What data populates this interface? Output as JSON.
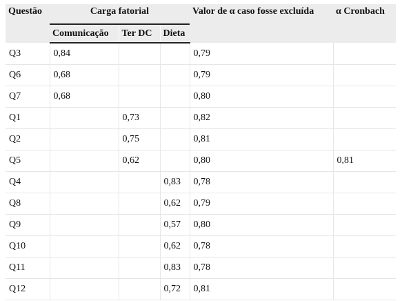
{
  "headers": {
    "questao": "Questão",
    "carga_fatorial": "Carga fatorial",
    "comunicacao": "Comunicação",
    "ter_dc": "Ter DC",
    "dieta": "Dieta",
    "valor_alpha": "Valor de α caso fosse excluída",
    "alpha_cronbach": "α Cronbach"
  },
  "rows": [
    {
      "q": "Q3",
      "com": "0,84",
      "terdc": "",
      "dieta": "",
      "alpha": "0,79",
      "cronbach": ""
    },
    {
      "q": "Q6",
      "com": "0,68",
      "terdc": "",
      "dieta": "",
      "alpha": "0,79",
      "cronbach": ""
    },
    {
      "q": "Q7",
      "com": "0,68",
      "terdc": "",
      "dieta": "",
      "alpha": "0,80",
      "cronbach": ""
    },
    {
      "q": "Q1",
      "com": "",
      "terdc": "0,73",
      "dieta": "",
      "alpha": "0,82",
      "cronbach": ""
    },
    {
      "q": "Q2",
      "com": "",
      "terdc": "0,75",
      "dieta": "",
      "alpha": "0,81",
      "cronbach": ""
    },
    {
      "q": "Q5",
      "com": "",
      "terdc": "0,62",
      "dieta": "",
      "alpha": "0,80",
      "cronbach": "0,81"
    },
    {
      "q": "Q4",
      "com": "",
      "terdc": "",
      "dieta": "0,83",
      "alpha": "0,78",
      "cronbach": ""
    },
    {
      "q": "Q8",
      "com": "",
      "terdc": "",
      "dieta": "0,62",
      "alpha": "0,79",
      "cronbach": ""
    },
    {
      "q": "Q9",
      "com": "",
      "terdc": "",
      "dieta": "0,57",
      "alpha": "0,80",
      "cronbach": ""
    },
    {
      "q": "Q10",
      "com": "",
      "terdc": "",
      "dieta": "0,62",
      "alpha": "0,78",
      "cronbach": ""
    },
    {
      "q": "Q11",
      "com": "",
      "terdc": "",
      "dieta": "0,83",
      "alpha": "0,78",
      "cronbach": ""
    },
    {
      "q": "Q12",
      "com": "",
      "terdc": "",
      "dieta": "0,72",
      "alpha": "0,81",
      "cronbach": ""
    }
  ]
}
